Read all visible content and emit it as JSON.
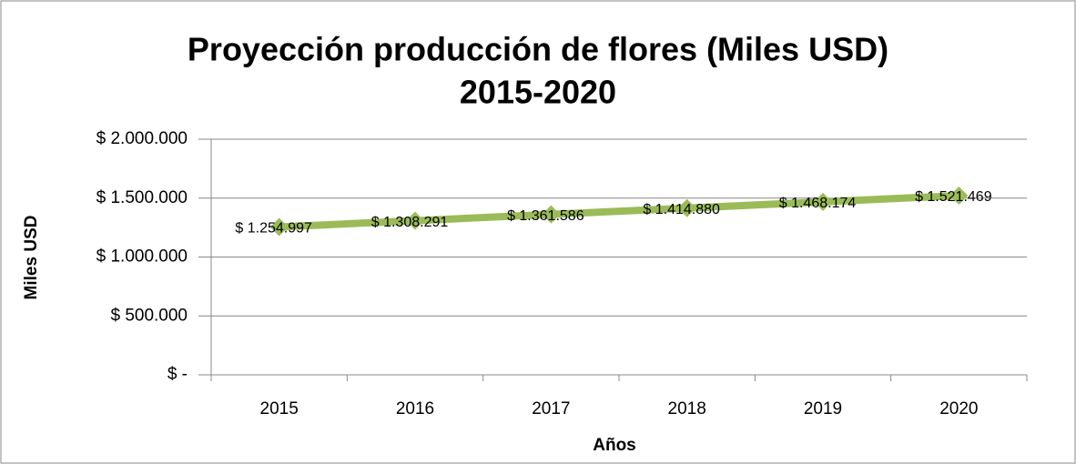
{
  "chart_data": {
    "type": "line",
    "title": [
      "Proyección producción de flores (Miles USD)",
      "2015-2020"
    ],
    "x_label": "Años",
    "y_label": "Miles USD",
    "categories": [
      "2015",
      "2016",
      "2017",
      "2018",
      "2019",
      "2020"
    ],
    "series": [
      {
        "name": "Miles USD",
        "color": "#9bbb59",
        "values": [
          1254997,
          1308291,
          1361586,
          1414880,
          1468174,
          1521469
        ],
        "value_labels": [
          "$ 1.254.997",
          "$ 1.308.291",
          "$ 1.361.586",
          "$ 1.414.880",
          "$ 1.468.174",
          "$ 1.521.469"
        ]
      }
    ],
    "ylim": [
      0,
      2000000
    ],
    "yticks": [
      {
        "value": 0,
        "label": "$ -"
      },
      {
        "value": 500000,
        "label": "$ 500.000"
      },
      {
        "value": 1000000,
        "label": "$ 1.000.000"
      },
      {
        "value": 1500000,
        "label": "$ 1.500.000"
      },
      {
        "value": 2000000,
        "label": "$ 2.000.000"
      }
    ],
    "grid": true
  }
}
